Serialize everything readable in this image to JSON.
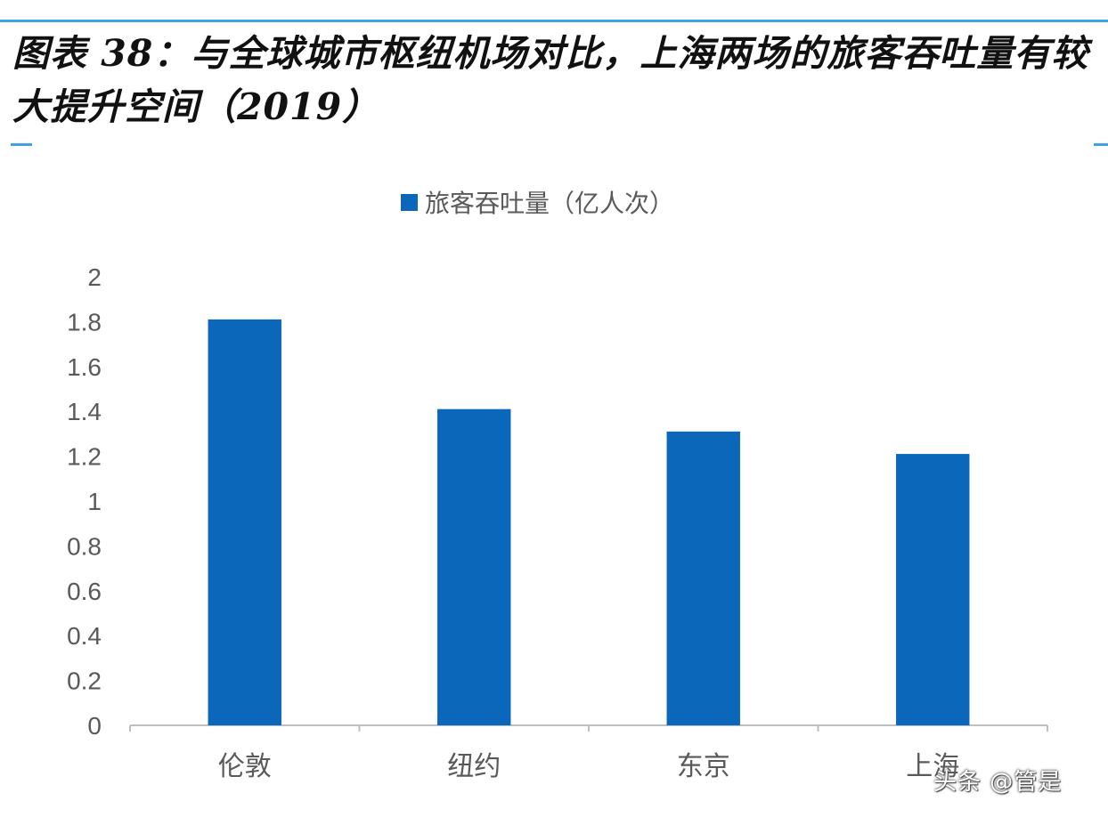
{
  "title": "图表 38：与全球城市枢纽机场对比，上海两场的旅客吞吐量有较大提升空间（2019）",
  "watermark": "头条 @管是",
  "chart_data": {
    "type": "bar",
    "categories": [
      "伦敦",
      "纽约",
      "东京",
      "上海"
    ],
    "series": [
      {
        "name": "旅客吞吐量（亿人次）",
        "values": [
          1.81,
          1.41,
          1.31,
          1.21
        ],
        "color": "#0a67b9"
      }
    ],
    "y_ticks": [
      "0",
      "0.2",
      "0.4",
      "0.6",
      "0.8",
      "1",
      "1.2",
      "1.4",
      "1.6",
      "1.8",
      "2"
    ],
    "ylim": [
      0,
      2
    ],
    "xlabel": "",
    "ylabel": "",
    "legend_position": "top-center",
    "grid": false,
    "axis_color": "#bfbfbf",
    "label_color": "#595959"
  }
}
